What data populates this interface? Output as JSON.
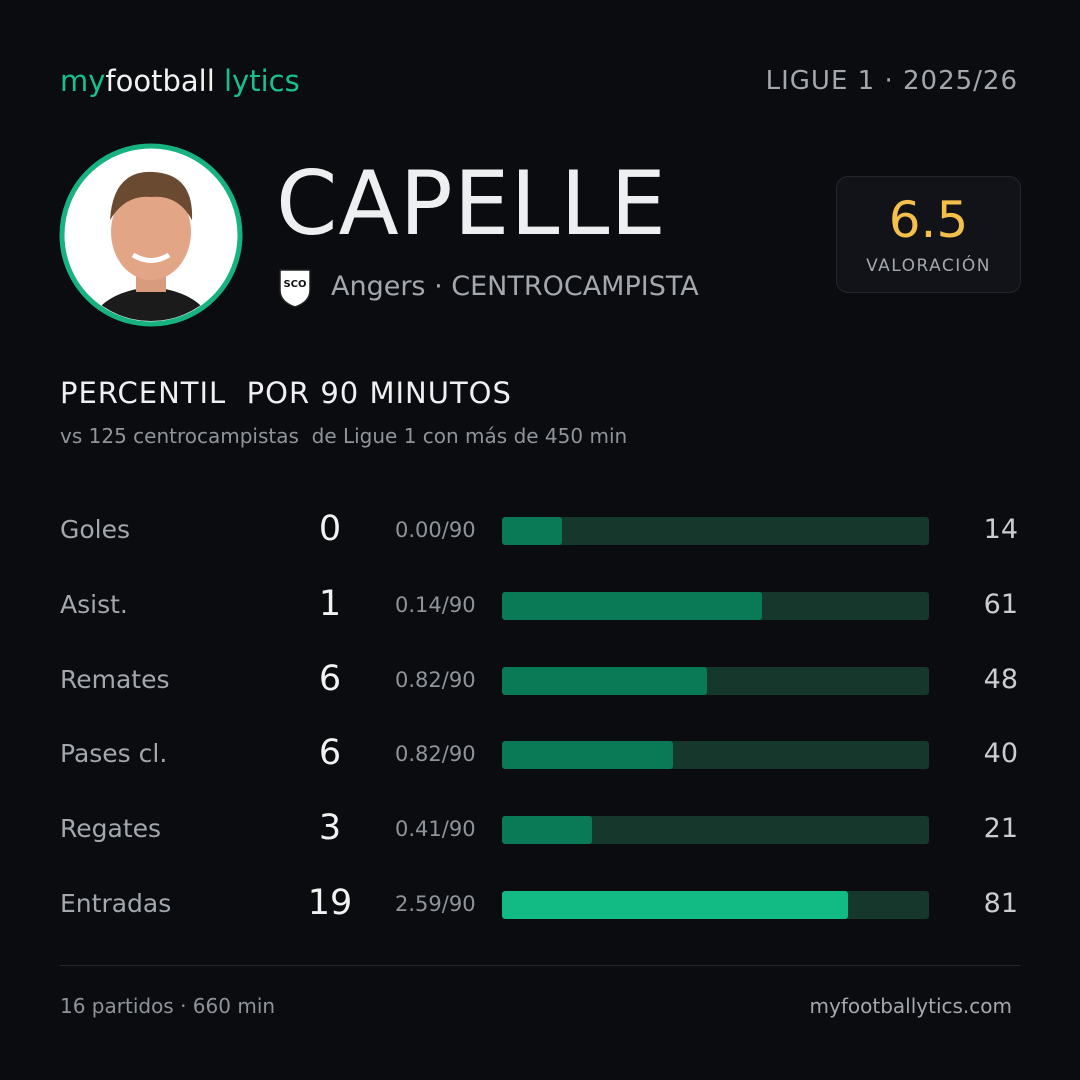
{
  "header": {
    "brand": [
      "my",
      "football",
      "lytics"
    ],
    "league": "LIGUE 1 · 2025/26"
  },
  "player": {
    "name": "CAPELLE",
    "crest": "SCO",
    "team_line": "Angers · CENTROCAMPISTA",
    "rating": "6.5",
    "rating_label": "VALORACIÓN"
  },
  "section": {
    "title": "PERCENTIL  POR 90 MINUTOS",
    "subtitle": "vs 125 centrocampistas  de Ligue 1 con más de 450 min"
  },
  "stats": {
    "xlim": [
      0,
      100
    ],
    "track_color": "#16372b",
    "rows": [
      {
        "label": "Goles",
        "total": 0,
        "per90": "0.00/90",
        "percentile": 14,
        "color": "#0a7a56"
      },
      {
        "label": "Asist.",
        "total": 1,
        "per90": "0.14/90",
        "percentile": 61,
        "color": "#0a7a56"
      },
      {
        "label": "Remates",
        "total": 6,
        "per90": "0.82/90",
        "percentile": 48,
        "color": "#0a7a56"
      },
      {
        "label": "Pases cl.",
        "total": 6,
        "per90": "0.82/90",
        "percentile": 40,
        "color": "#0a7a56"
      },
      {
        "label": "Regates",
        "total": 3,
        "per90": "0.41/90",
        "percentile": 21,
        "color": "#0a7a56"
      },
      {
        "label": "Entradas",
        "total": 19,
        "per90": "2.59/90",
        "percentile": 81,
        "color": "#12bb84"
      }
    ]
  },
  "footer": {
    "left": "16 partidos · 660 min",
    "right": "myfootballytics.com"
  }
}
